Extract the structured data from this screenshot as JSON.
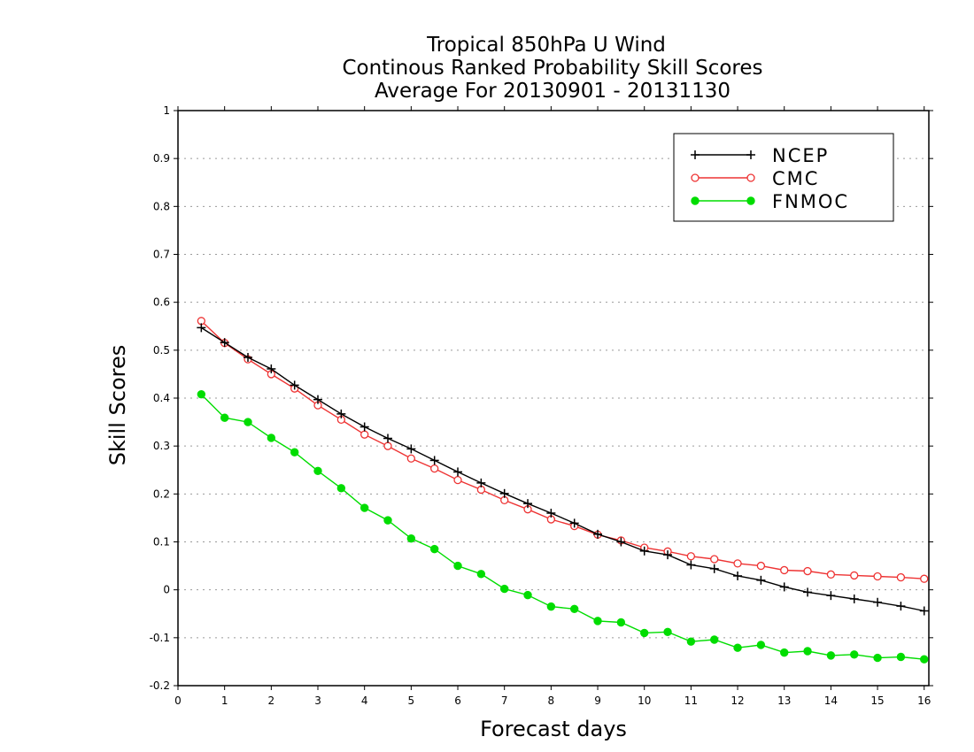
{
  "chart_data": {
    "type": "line",
    "title_lines": [
      "Tropical 850hPa U Wind",
      "Continous Ranked Probability Skill Scores",
      "Average For 20130901 - 20131130"
    ],
    "xlabel": "Forecast days",
    "ylabel": "Skill Scores",
    "xlim": [
      0,
      16.1
    ],
    "ylim": [
      -0.2,
      1
    ],
    "xticks": [
      "0",
      "1",
      "2",
      "3",
      "4",
      "5",
      "6",
      "7",
      "8",
      "9",
      "10",
      "11",
      "12",
      "13",
      "14",
      "15",
      "16"
    ],
    "yticks": [
      "1",
      "0.9",
      "0.8",
      "0.7",
      "0.6",
      "0.5",
      "0.4",
      "0.3",
      "0.2",
      "0.1",
      "0",
      "-0.1",
      "-0.2"
    ],
    "grid": "horizontal dotted",
    "legend_position": "top-right",
    "x": [
      0.5,
      1,
      1.5,
      2,
      2.5,
      3,
      3.5,
      4,
      4.5,
      5,
      5.5,
      6,
      6.5,
      7,
      7.5,
      8,
      8.5,
      9,
      9.5,
      10,
      10.5,
      11,
      11.5,
      12,
      12.5,
      13,
      13.5,
      14,
      14.5,
      15,
      15.5,
      16
    ],
    "series": [
      {
        "name": "NCEP",
        "color": "#000000",
        "marker": "plus",
        "values": [
          0.547,
          0.516,
          0.485,
          0.461,
          0.427,
          0.397,
          0.367,
          0.34,
          0.316,
          0.294,
          0.27,
          0.246,
          0.223,
          0.201,
          0.18,
          0.16,
          0.139,
          0.116,
          0.1,
          0.081,
          0.073,
          0.052,
          0.044,
          0.029,
          0.02,
          0.006,
          -0.005,
          -0.012,
          -0.019,
          -0.026,
          -0.034,
          -0.044
        ]
      },
      {
        "name": "CMC",
        "color": "#ee3333",
        "marker": "open-circle",
        "values": [
          0.561,
          0.515,
          0.481,
          0.45,
          0.42,
          0.385,
          0.355,
          0.324,
          0.3,
          0.274,
          0.253,
          0.229,
          0.209,
          0.187,
          0.168,
          0.147,
          0.133,
          0.115,
          0.103,
          0.088,
          0.08,
          0.07,
          0.064,
          0.055,
          0.05,
          0.041,
          0.039,
          0.032,
          0.03,
          0.028,
          0.026,
          0.023
        ]
      },
      {
        "name": "FNMOC",
        "color": "#00dd00",
        "marker": "filled-circle",
        "values": [
          0.408,
          0.359,
          0.35,
          0.317,
          0.287,
          0.248,
          0.212,
          0.171,
          0.145,
          0.107,
          0.085,
          0.05,
          0.033,
          0.002,
          -0.011,
          -0.035,
          -0.04,
          -0.065,
          -0.068,
          -0.09,
          -0.088,
          -0.108,
          -0.104,
          -0.121,
          -0.115,
          -0.131,
          -0.128,
          -0.137,
          -0.135,
          -0.142,
          -0.14,
          -0.145
        ]
      }
    ]
  }
}
